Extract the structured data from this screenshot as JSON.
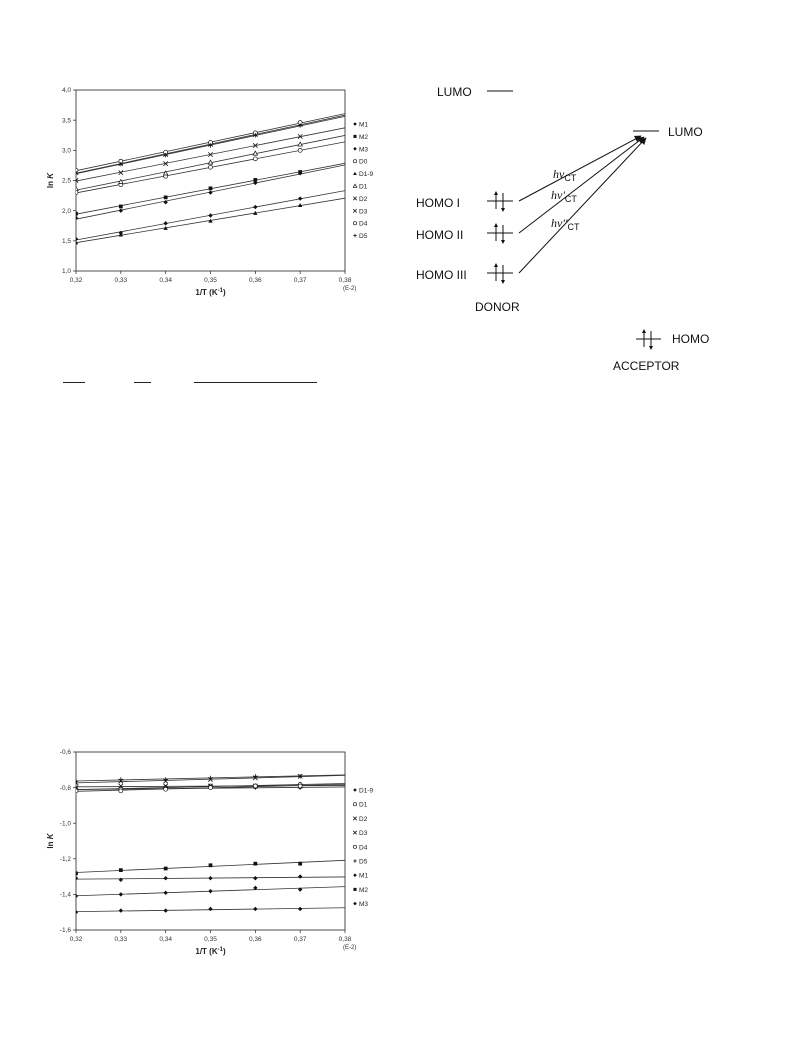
{
  "chart_data": [
    {
      "type": "scatter",
      "title": "",
      "xlabel": "1/T (K",
      "xlabel_sup": "-1",
      "xlabel_end": ")",
      "ylabel": "ln K",
      "x_multiplier": "(E-2)",
      "xlim": [
        0.32,
        0.38
      ],
      "ylim": [
        1.0,
        4.0
      ],
      "xticks": [
        "0,32",
        "0,33",
        "0,34",
        "0,35",
        "0,36",
        "0,37",
        "0,38"
      ],
      "yticks": [
        "1,0",
        "1,5",
        "2,0",
        "2,5",
        "3,0",
        "3,5",
        "4,0"
      ],
      "grid": false,
      "legend_position": "right",
      "x": [
        0.32,
        0.33,
        0.34,
        0.35,
        0.36,
        0.37
      ],
      "series": [
        {
          "name": "M1",
          "marker": "diamond",
          "values": [
            1.88,
            2.0,
            2.14,
            2.3,
            2.46,
            2.62
          ]
        },
        {
          "name": "M2",
          "marker": "square",
          "values": [
            1.95,
            2.07,
            2.22,
            2.37,
            2.51,
            2.64
          ]
        },
        {
          "name": "M3",
          "marker": "diamond",
          "values": [
            1.53,
            1.63,
            1.79,
            1.92,
            2.06,
            2.2
          ]
        },
        {
          "name": "D0",
          "marker": "circle-open",
          "values": [
            2.3,
            2.43,
            2.57,
            2.72,
            2.86,
            3.0
          ]
        },
        {
          "name": "D1-9",
          "marker": "triangle",
          "values": [
            1.47,
            1.6,
            1.71,
            1.83,
            1.96,
            2.09
          ]
        },
        {
          "name": "D1",
          "marker": "triangle-open",
          "values": [
            2.36,
            2.48,
            2.62,
            2.8,
            2.95,
            3.1
          ]
        },
        {
          "name": "D2",
          "marker": "x",
          "values": [
            2.5,
            2.63,
            2.78,
            2.93,
            3.08,
            3.23
          ]
        },
        {
          "name": "D3",
          "marker": "x",
          "values": [
            2.63,
            2.78,
            2.93,
            3.1,
            3.26,
            3.43
          ]
        },
        {
          "name": "D4",
          "marker": "circle-open",
          "values": [
            2.67,
            2.82,
            2.97,
            3.13,
            3.29,
            3.46
          ]
        },
        {
          "name": "D5",
          "marker": "plus",
          "values": [
            2.62,
            2.77,
            2.92,
            3.08,
            3.25,
            3.41
          ]
        }
      ]
    },
    {
      "type": "scatter",
      "title": "",
      "xlabel": "1/T (K",
      "xlabel_sup": "-1",
      "xlabel_end": ")",
      "ylabel": "ln K",
      "x_multiplier": "(E-2)",
      "xlim": [
        0.32,
        0.38
      ],
      "ylim": [
        -1.6,
        -0.5
      ],
      "xticks": [
        "0,32",
        "0,33",
        "0,34",
        "0,35",
        "0,36",
        "0,37",
        "0,38"
      ],
      "yticks": [
        "-1,6",
        "-1,4",
        "-1,2",
        "-1,0",
        "-0,8",
        "-0,6"
      ],
      "grid": false,
      "legend_position": "right",
      "x": [
        0.32,
        0.33,
        0.34,
        0.35,
        0.36,
        0.37
      ],
      "series": [
        {
          "name": "D1-9",
          "marker": "diamond",
          "values": [
            -0.73,
            -0.73,
            -0.73,
            -0.72,
            -0.72,
            -0.72
          ]
        },
        {
          "name": "D1",
          "marker": "circle-open",
          "values": [
            -0.73,
            -0.73,
            -0.72,
            -0.71,
            -0.71,
            -0.7
          ]
        },
        {
          "name": "D2",
          "marker": "x",
          "values": [
            -0.72,
            -0.71,
            -0.71,
            -0.71,
            -0.71,
            -0.71
          ]
        },
        {
          "name": "D3",
          "marker": "x",
          "values": [
            -0.69,
            -0.68,
            -0.68,
            -0.67,
            -0.66,
            -0.65
          ]
        },
        {
          "name": "D4",
          "marker": "circle-open",
          "values": [
            -0.74,
            -0.74,
            -0.73,
            -0.72,
            -0.71,
            -0.71
          ]
        },
        {
          "name": "D5",
          "marker": "plus",
          "values": [
            -0.68,
            -0.67,
            -0.67,
            -0.66,
            -0.65,
            -0.65
          ]
        },
        {
          "name": "M1",
          "marker": "diamond",
          "values": [
            -1.28,
            -1.29,
            -1.28,
            -1.28,
            -1.28,
            -1.27
          ]
        },
        {
          "name": "M2",
          "marker": "square",
          "values": [
            -1.25,
            -1.23,
            -1.22,
            -1.2,
            -1.19,
            -1.19
          ]
        },
        {
          "name": "M3",
          "marker": "diamond",
          "values": [
            -1.49,
            -1.48,
            -1.48,
            -1.47,
            -1.47,
            -1.47
          ]
        },
        {
          "name": "",
          "marker": "diamond",
          "values": [
            -1.39,
            -1.38,
            -1.37,
            -1.36,
            -1.34,
            -1.35
          ]
        }
      ]
    }
  ],
  "diagram": {
    "lumo_top": "LUMO",
    "lumo_acceptor": "LUMO",
    "homo_1": "HOMO I",
    "homo_2": "HOMO II",
    "homo_3": "HOMO III",
    "donor": "DONOR",
    "homo_acceptor": "HOMO",
    "acceptor": "ACCEPTOR",
    "hv_1": "hν",
    "hv_1_sub": "CT",
    "hv_2": "hν'",
    "hv_2_sub": "CT",
    "hv_3": "hν''",
    "hv_3_sub": "CT"
  }
}
